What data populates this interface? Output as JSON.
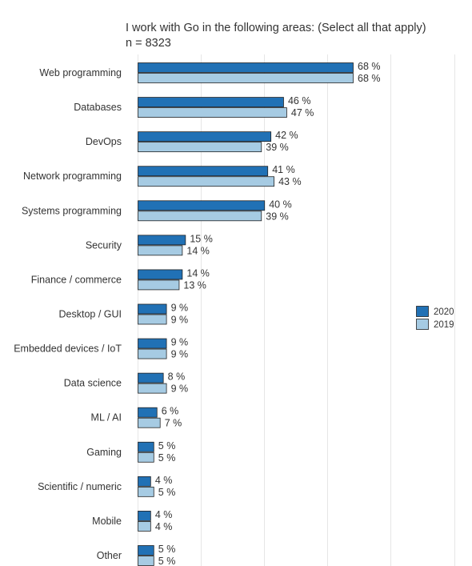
{
  "chart_data": {
    "type": "bar",
    "orientation": "horizontal",
    "title": "I work with Go in the following areas: (Select all that apply)",
    "subtitle": "n = 8323",
    "categories": [
      "Web programming",
      "Databases",
      "DevOps",
      "Network programming",
      "Systems programming",
      "Security",
      "Finance / commerce",
      "Desktop / GUI",
      "Embedded devices / IoT",
      "Data science",
      "ML / AI",
      "Gaming",
      "Scientific / numeric",
      "Mobile",
      "Other"
    ],
    "series": [
      {
        "name": "2020",
        "values": [
          68,
          46,
          42,
          41,
          40,
          15,
          14,
          9,
          9,
          8,
          6,
          5,
          4,
          4,
          5
        ],
        "color": "#2171b5"
      },
      {
        "name": "2019",
        "values": [
          68,
          47,
          39,
          43,
          39,
          14,
          13,
          9,
          9,
          9,
          7,
          5,
          5,
          4,
          5
        ],
        "color": "#a6cbe3"
      }
    ],
    "value_suffix": " %",
    "xlim": [
      0,
      100
    ],
    "grid": true,
    "legend": "right"
  }
}
